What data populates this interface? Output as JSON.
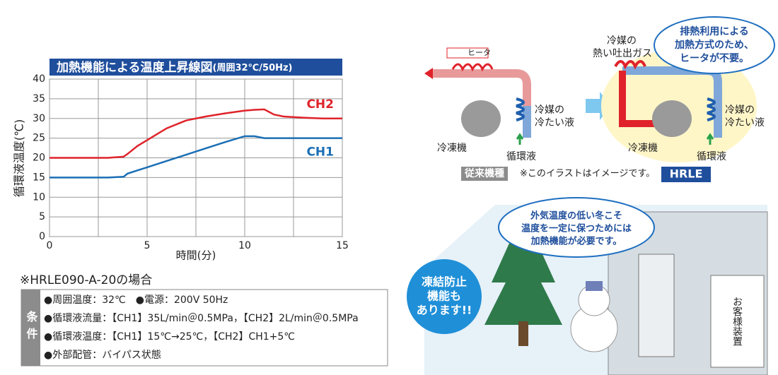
{
  "chart_data": {
    "type": "line",
    "title": "加熱機能による温度上昇線図",
    "subtitle": "(周囲32℃/50Hz)",
    "y_label": "循環液温度(℃)",
    "x_label": "時間(分)",
    "x": [
      0,
      1,
      2,
      3,
      3.8,
      4,
      4.5,
      5,
      5.5,
      6,
      7,
      8,
      9,
      10,
      10.5,
      11,
      11.5,
      12,
      13,
      14,
      15
    ],
    "series": [
      {
        "name": "CH2",
        "color": "#e0232a",
        "values": [
          20,
          20,
          20,
          20,
          20.3,
          21,
          23,
          24.5,
          26,
          27.5,
          29.5,
          30.5,
          31.3,
          32,
          32.2,
          32.3,
          31,
          30.5,
          30.2,
          30,
          30
        ]
      },
      {
        "name": "CH1",
        "color": "#1b6fb5",
        "values": [
          15,
          15,
          15,
          15,
          15.2,
          16,
          16.8,
          17.6,
          18.4,
          19.2,
          20.8,
          22.4,
          24,
          25.5,
          25.5,
          25,
          25,
          25,
          25,
          25,
          25
        ]
      }
    ],
    "xlim": [
      0,
      15
    ],
    "ylim": [
      0,
      40
    ],
    "xticks": [
      0,
      5,
      10,
      15
    ],
    "x_minor_grid": [
      2.5,
      7.5,
      12.5
    ],
    "yticks": [
      0,
      5,
      10,
      15,
      20,
      25,
      30,
      35,
      40
    ],
    "grid": true
  },
  "conditions": {
    "model": "※HRLE090-A-20の場合",
    "label": "条件",
    "items": [
      "●周囲温度：32℃　●電源：200V 50Hz",
      "●循環液流量：【CH1】35L/min＠0.5MPa，【CH2】2L/min＠0.5MPa",
      "●循環液温度：【CH1】15℃→25℃，【CH2】CH1+5℃",
      "●外部配管：バイパス状態"
    ]
  },
  "conventional": {
    "heater": "ヒータ",
    "cold_liquid": [
      "冷媒の",
      "冷たい液"
    ],
    "chiller": "冷凍機",
    "fluid": "循環液",
    "badge": "従来機種"
  },
  "note": "※このイラストはイメージです。",
  "hrle": {
    "hot_gas": [
      "冷媒の",
      "熱い吐出ガス"
    ],
    "bubble": [
      "排熱利用による",
      "加熱方式のため、",
      "ヒータが不要。"
    ],
    "cold_liquid": [
      "冷媒の",
      "冷たい液"
    ],
    "chiller": "冷凍機",
    "fluid": "循環液",
    "badge": "HRLE"
  },
  "winter": {
    "bubble": [
      "外気温度の低い冬こそ",
      "温度を一定に保つためには",
      "加熱機能が必要です。"
    ],
    "badge": [
      "凍結防止",
      "機能も",
      "あります!!"
    ],
    "device": "お客様装置"
  }
}
